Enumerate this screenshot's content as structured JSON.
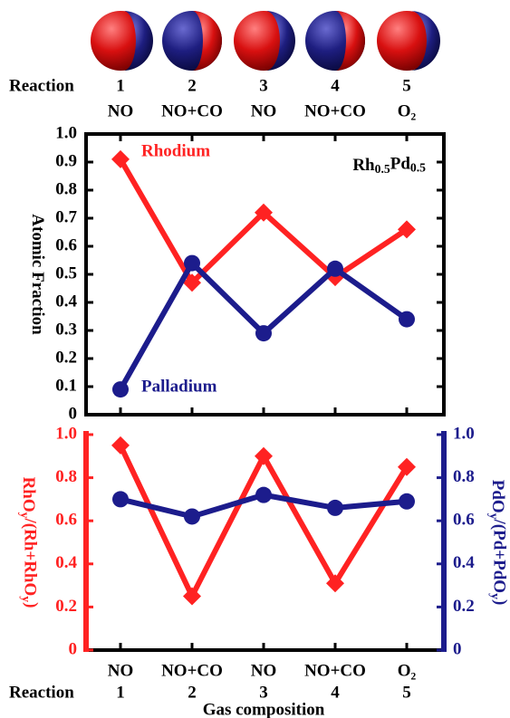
{
  "chart_data": [
    {
      "type": "line",
      "x_title": "Reaction",
      "categories": [
        "1",
        "2",
        "3",
        "4",
        "5"
      ],
      "gas": [
        "NO",
        "NO+CO",
        "NO",
        "NO+CO",
        "O₂"
      ],
      "ylabel": [
        {
          "text": "Atomic Fraction"
        }
      ],
      "annotation": [
        {
          "text": "Rh"
        },
        {
          "text": "0.5",
          "sub": true
        },
        {
          "text": "Pd"
        },
        {
          "text": "0.5",
          "sub": true
        }
      ],
      "ylim": [
        0,
        1
      ],
      "yticks": [
        0,
        0.1,
        0.2,
        0.3,
        0.4,
        0.5,
        0.6,
        0.7,
        0.8,
        0.9,
        {
          "value": 1,
          "label": "1.0"
        }
      ],
      "series": [
        {
          "name": "Rhodium",
          "color": "#ff2222",
          "marker": "diamond",
          "values": [
            0.91,
            0.47,
            0.72,
            0.49,
            0.66
          ]
        },
        {
          "name": "Palladium",
          "color": "#1c1c8c",
          "marker": "circle",
          "values": [
            0.09,
            0.54,
            0.29,
            0.52,
            0.34
          ]
        }
      ]
    },
    {
      "type": "line",
      "x_title": "Reaction",
      "categories": [
        "1",
        "2",
        "3",
        "4",
        "5"
      ],
      "gas": [
        "NO",
        "NO+CO",
        "NO",
        "NO+CO",
        "O₂"
      ],
      "xlabel": "Gas composition",
      "ylabel": [
        {
          "text": "RhO"
        },
        {
          "text": "y",
          "sub": true
        },
        {
          "text": "/(Rh+RhO"
        },
        {
          "text": "y",
          "sub": true
        },
        {
          "text": ")"
        }
      ],
      "y2label": [
        {
          "text": "PdO"
        },
        {
          "text": "y",
          "sub": true
        },
        {
          "text": "/(Pd+PdO"
        },
        {
          "text": "y",
          "sub": true
        },
        {
          "text": ")"
        }
      ],
      "ylim": [
        0,
        1
      ],
      "yticks": [
        0,
        0.2,
        0.4,
        0.6,
        0.8,
        {
          "value": 1,
          "label": "1.0"
        }
      ],
      "y2lim": [
        0,
        1
      ],
      "y2ticks": [
        0,
        0.2,
        0.4,
        0.6,
        0.8,
        {
          "value": 1,
          "label": "1.0"
        }
      ],
      "series": [
        {
          "name": "RhOy",
          "color": "#ff2222",
          "marker": "diamond",
          "values": [
            0.95,
            0.25,
            0.9,
            0.31,
            0.85
          ]
        },
        {
          "name": "PdOy",
          "color": "#1c1c8c",
          "marker": "circle",
          "axis": "y2",
          "values": [
            0.7,
            0.62,
            0.72,
            0.66,
            0.69
          ]
        }
      ]
    }
  ]
}
